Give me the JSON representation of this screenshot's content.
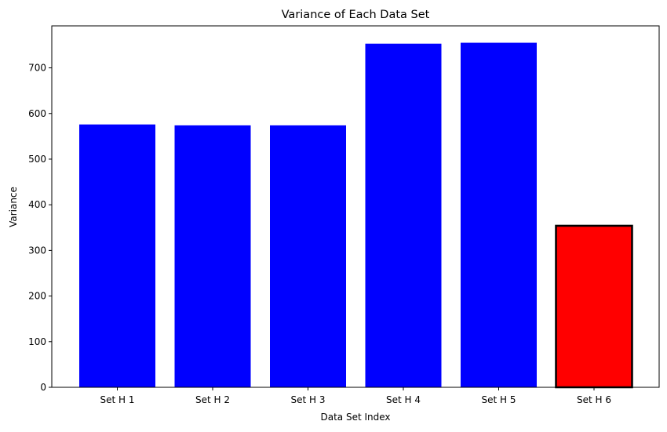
{
  "chart_data": {
    "type": "bar",
    "title": "Variance of Each Data Set",
    "xlabel": "Data Set Index",
    "ylabel": "Variance",
    "categories": [
      "Set H 1",
      "Set H 2",
      "Set H 3",
      "Set H 4",
      "Set H 5",
      "Set H 6"
    ],
    "values": [
      576,
      574,
      574,
      753,
      755,
      354
    ],
    "bar_colors": [
      "#0000ff",
      "#0000ff",
      "#0000ff",
      "#0000ff",
      "#0000ff",
      "#ff0000"
    ],
    "highlight": {
      "category": "Set H 6",
      "edge_color": "#000000"
    },
    "ylim": [
      0,
      792
    ],
    "yticks": [
      0,
      100,
      200,
      300,
      400,
      500,
      600,
      700
    ],
    "grid": false,
    "legend": "none"
  }
}
